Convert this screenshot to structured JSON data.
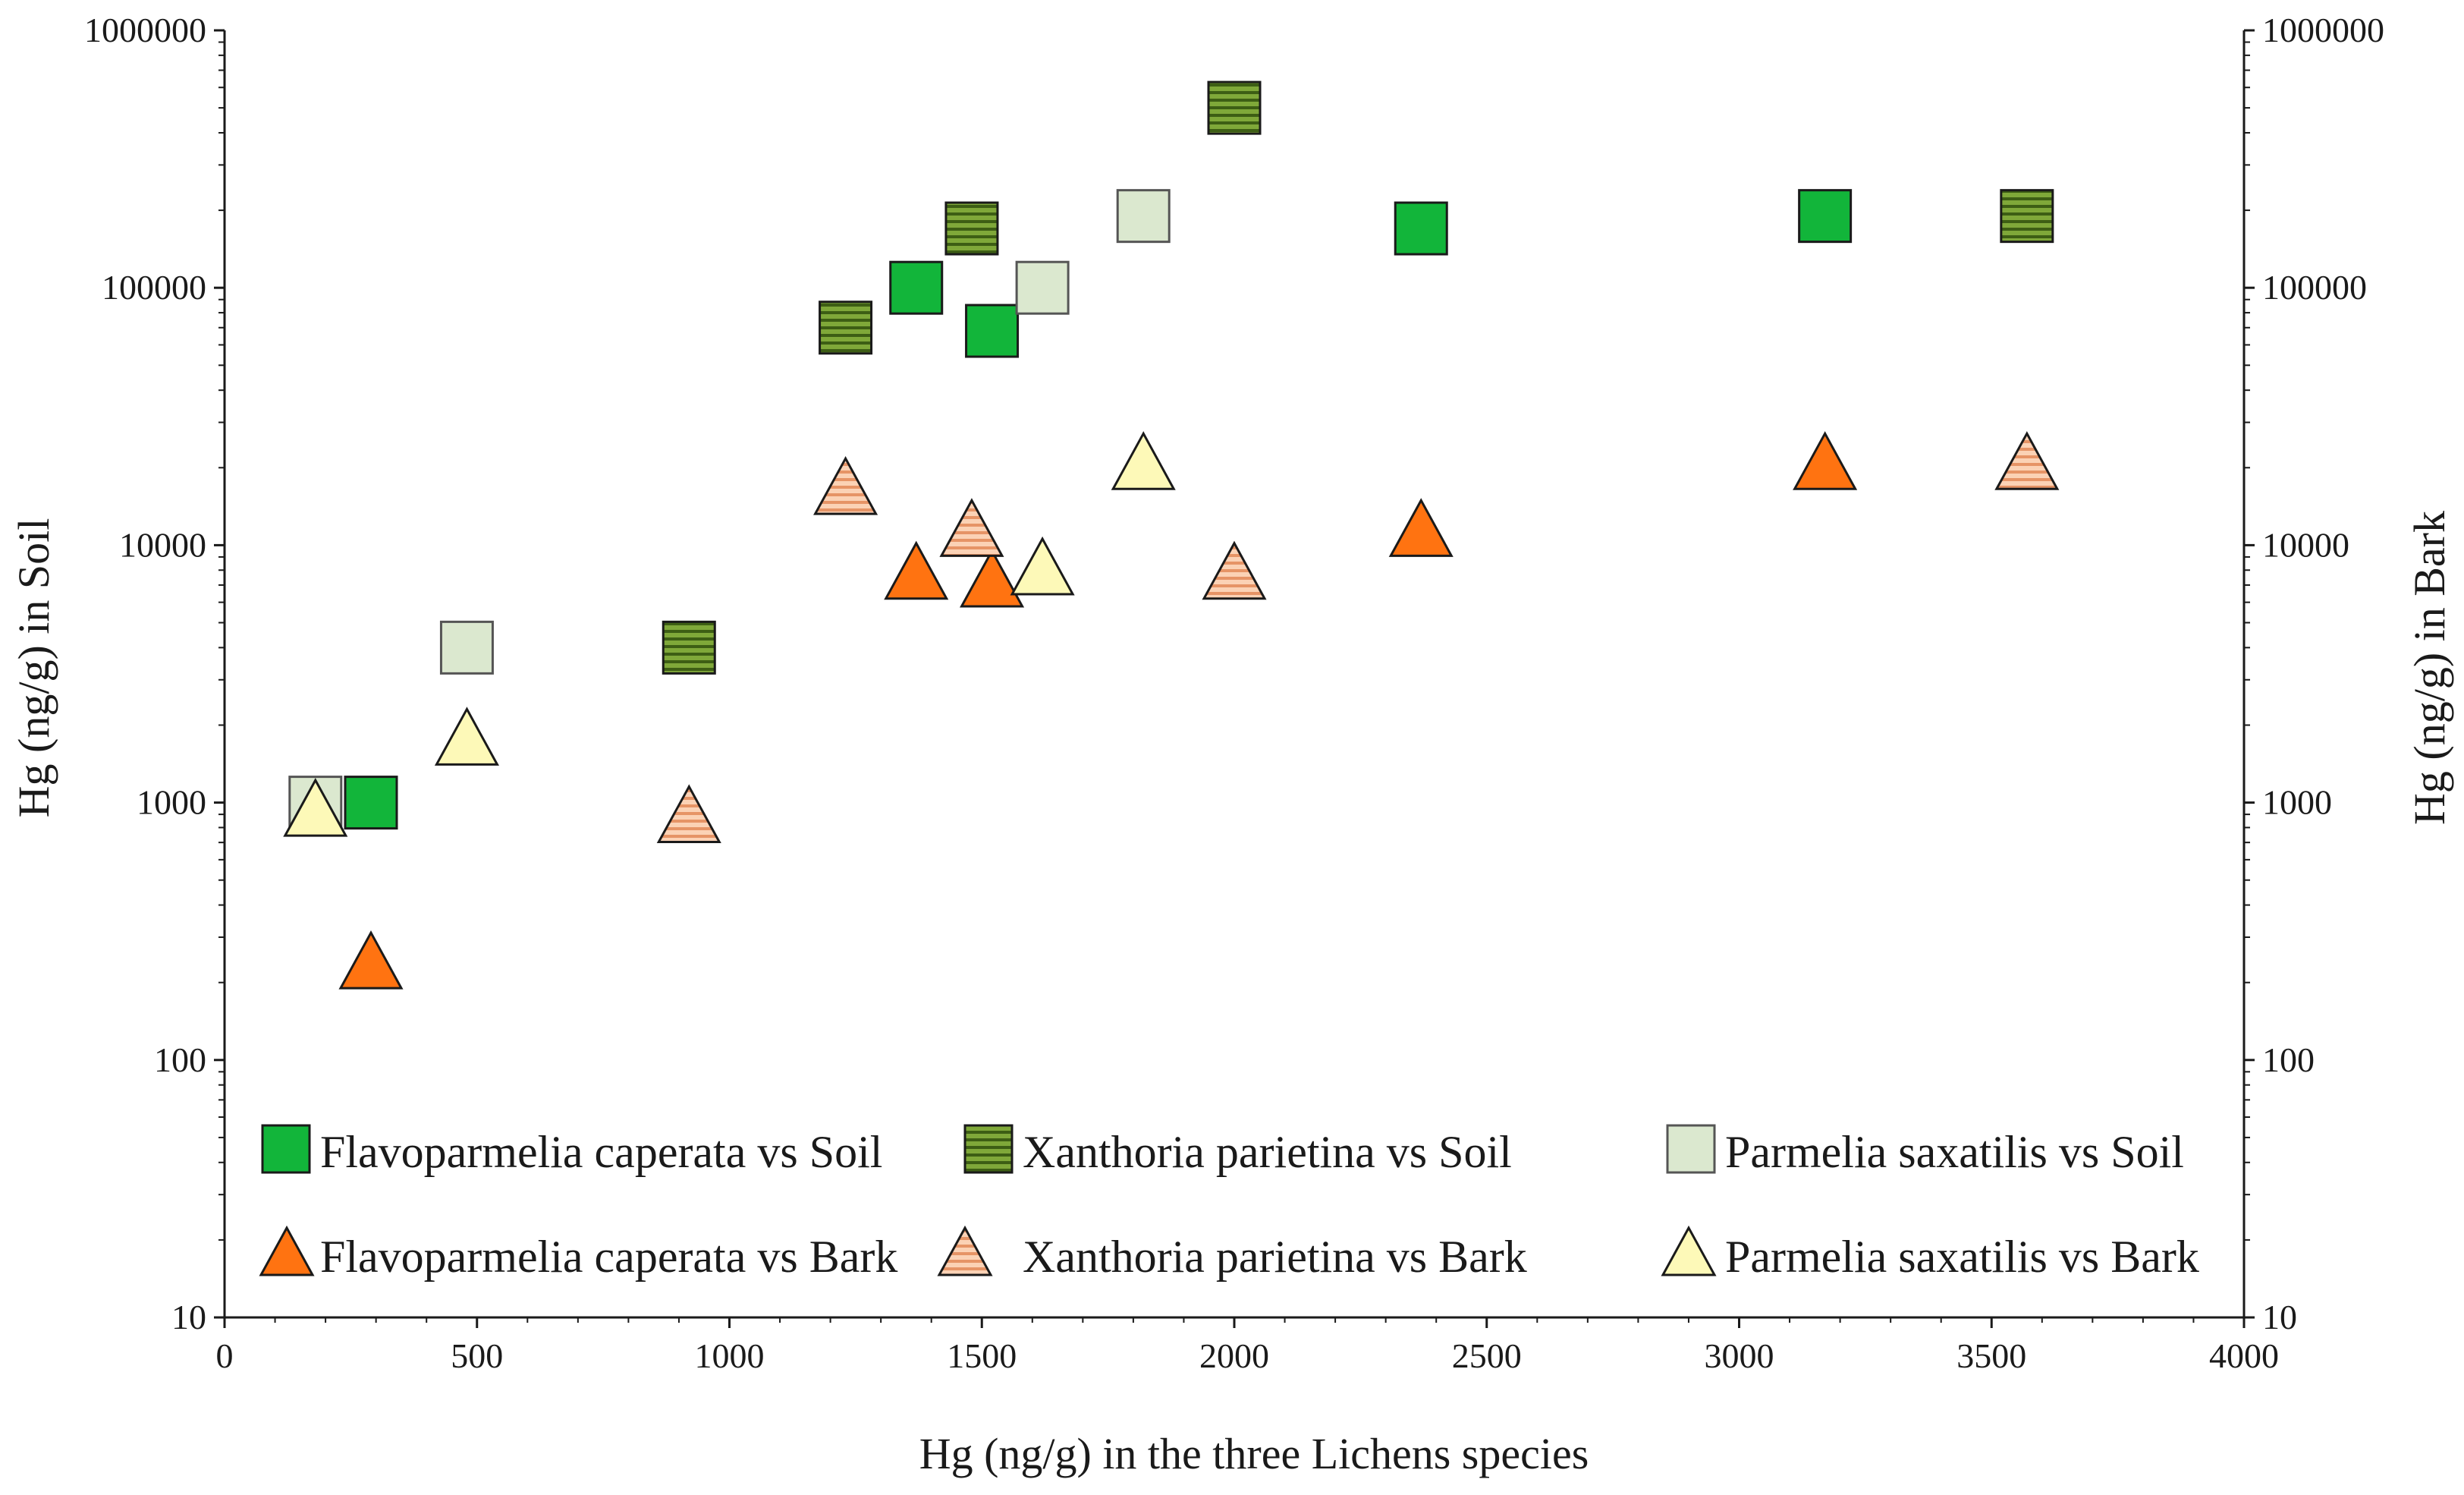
{
  "chart_data": {
    "type": "scatter",
    "title": "",
    "xlabel": "Hg (ng/g) in the three Lichens species",
    "ylabel": "Hg (ng/g) in Soil",
    "y2label": "Hg (ng/g) in Bark",
    "xlim": [
      0,
      4000
    ],
    "ylim": [
      10,
      1000000
    ],
    "yscale": "log",
    "x_ticks": [
      "0",
      "500",
      "1000",
      "1500",
      "2000",
      "2500",
      "3000",
      "3500",
      "4000"
    ],
    "y_ticks": [
      "10",
      "100",
      "1000",
      "10000",
      "100000",
      "1000000"
    ],
    "y2_ticks": [
      "10",
      "100",
      "1000",
      "10000",
      "100000",
      "1000000"
    ],
    "grid": false,
    "legend_position": "bottom",
    "series": [
      {
        "name": "Flavoparmelia caperata vs Soil",
        "marker": "square",
        "color": "#12b53a",
        "points": [
          [
            290,
            1000
          ],
          [
            1370,
            100000
          ],
          [
            1520,
            68000
          ],
          [
            2370,
            170000
          ],
          [
            3170,
            190000
          ]
        ]
      },
      {
        "name": "Xanthoria parietina vs Soil",
        "marker": "square-hatched",
        "color": "#6e9a2a",
        "points": [
          [
            920,
            4000
          ],
          [
            1230,
            70000
          ],
          [
            1480,
            170000
          ],
          [
            2000,
            500000
          ],
          [
            3570,
            190000
          ]
        ]
      },
      {
        "name": "Parmelia saxatilis vs Soil",
        "marker": "square",
        "color": "#dbe8cf",
        "points": [
          [
            180,
            1000
          ],
          [
            480,
            4000
          ],
          [
            1620,
            100000
          ],
          [
            1820,
            190000
          ]
        ]
      },
      {
        "name": "Flavoparmelia caperata vs Bark",
        "marker": "triangle",
        "color": "#ff7311",
        "points": [
          [
            290,
            230
          ],
          [
            1370,
            7500
          ],
          [
            1520,
            7000
          ],
          [
            2370,
            11000
          ],
          [
            3170,
            20000
          ]
        ]
      },
      {
        "name": "Xanthoria parietina vs Bark",
        "marker": "triangle-hatched",
        "color": "#f6b48e",
        "points": [
          [
            920,
            850
          ],
          [
            1230,
            16000
          ],
          [
            1480,
            11000
          ],
          [
            2000,
            7500
          ],
          [
            3570,
            20000
          ]
        ]
      },
      {
        "name": "Parmelia saxatilis vs Bark",
        "marker": "triangle",
        "color": "#fdf9b8",
        "points": [
          [
            180,
            900
          ],
          [
            480,
            1700
          ],
          [
            1620,
            7800
          ],
          [
            1820,
            20000
          ]
        ]
      }
    ]
  }
}
